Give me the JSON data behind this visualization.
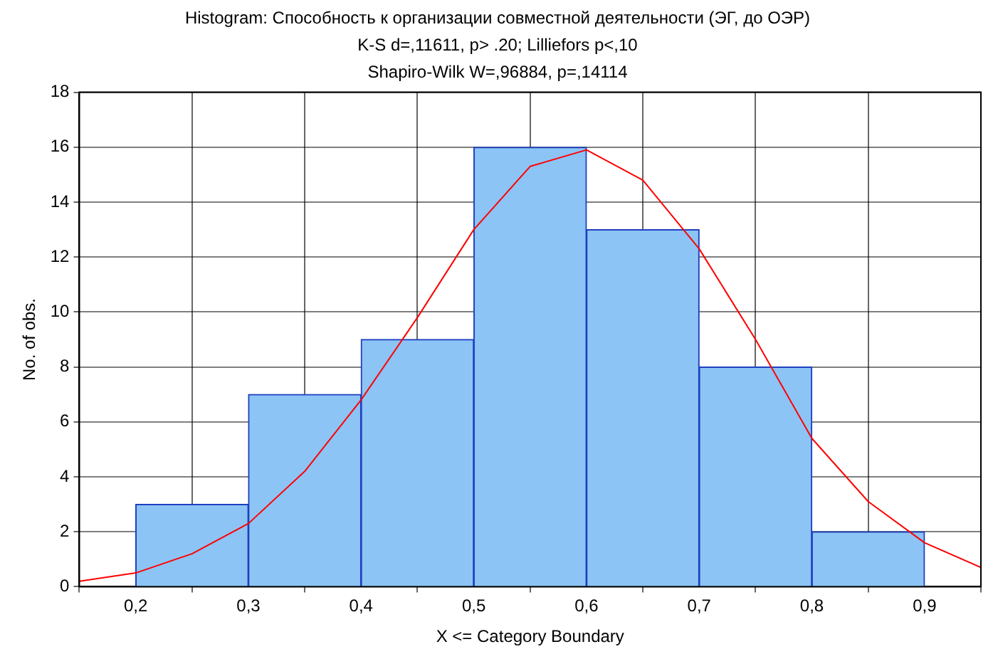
{
  "chart_data": {
    "type": "histogram",
    "title": "Histogram: Способность к организации совместной деятельности (ЭГ, до ОЭР)",
    "subtitle": "K-S d=,11611, p> .20; Lilliefors p<,10",
    "annotations": [
      "Shapiro-Wilk W=,96884, p=,14114"
    ],
    "xlabel": "X <= Category Boundary",
    "ylabel": "No. of obs.",
    "bins": [
      0.2,
      0.3,
      0.4,
      0.5,
      0.6,
      0.7,
      0.8,
      0.9
    ],
    "values": [
      3,
      7,
      9,
      16,
      13,
      8,
      2
    ],
    "color": "#8cc4f5",
    "series": [
      {
        "type": "line",
        "color": "#ff0000",
        "x": [
          0.15,
          0.2,
          0.25,
          0.3,
          0.35,
          0.4,
          0.45,
          0.5,
          0.55,
          0.6,
          0.65,
          0.7,
          0.75,
          0.8,
          0.85,
          0.9,
          0.95
        ],
        "values": [
          0.2,
          0.5,
          1.2,
          2.3,
          4.2,
          6.8,
          9.8,
          13,
          15.3,
          15.9,
          14.8,
          12.3,
          9,
          5.4,
          3.1,
          1.6,
          0.7
        ]
      }
    ],
    "xlim": [
      0.15,
      0.95
    ],
    "xticks": [
      {
        "value": 0.2,
        "label": "0,2"
      },
      {
        "value": 0.3,
        "label": "0,3"
      },
      {
        "value": 0.4,
        "label": "0,4"
      },
      {
        "value": 0.5,
        "label": "0,5"
      },
      {
        "value": 0.6,
        "label": "0,6"
      },
      {
        "value": 0.7,
        "label": "0,7"
      },
      {
        "value": 0.8,
        "label": "0,8"
      },
      {
        "value": 0.9,
        "label": "0,9"
      }
    ],
    "ylim": [
      0,
      18
    ],
    "yticks": [
      0,
      2,
      4,
      6,
      8,
      10,
      12,
      14,
      16,
      18
    ],
    "grid": true,
    "legend": false,
    "marker": "none"
  }
}
